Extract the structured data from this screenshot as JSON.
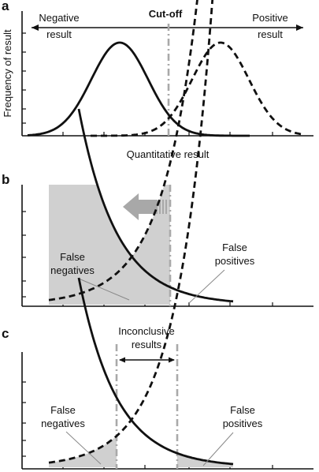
{
  "panel_a": {
    "letter": "a",
    "cutoff_label": "Cut-off",
    "negative_label": [
      "Negative",
      "result"
    ],
    "positive_label": [
      "Positive",
      "result"
    ],
    "ylabel": "Frequency of result",
    "xlabel": "Quantitative result"
  },
  "panel_b": {
    "letter": "b",
    "false_negatives": [
      "False",
      "negatives"
    ],
    "false_positives": [
      "False",
      "positives"
    ]
  },
  "panel_c": {
    "letter": "c",
    "inconclusive": [
      "Inconclusive",
      "results"
    ],
    "false_negatives": [
      "False",
      "negatives"
    ],
    "false_positives": [
      "False",
      "positives"
    ]
  },
  "colors": {
    "curve": "#111111",
    "cutoff_line": "#a9a9a9",
    "shaded_area": "#d0d0d0",
    "shift_arrow": "#a8a8a8"
  }
}
